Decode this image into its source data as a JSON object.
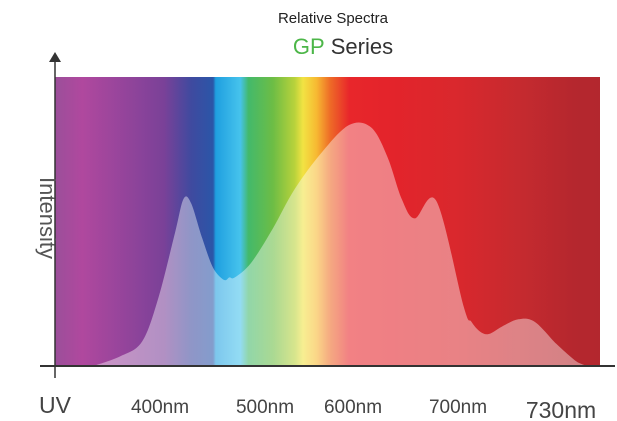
{
  "chart_data": {
    "type": "area",
    "title": "Relative Spectra",
    "subtitle_highlight": "GP",
    "subtitle_rest": "Series",
    "ylabel": "Intensity",
    "x_ticks": [
      {
        "label": "UV",
        "value": 300
      },
      {
        "label": "400nm",
        "value": 400
      },
      {
        "label": "500nm",
        "value": 500
      },
      {
        "label": "600nm",
        "value": 600
      },
      {
        "label": "700nm",
        "value": 700
      },
      {
        "label": "730nm",
        "value": 730
      }
    ],
    "xlim": [
      300,
      800
    ],
    "ylim": [
      0,
      1
    ],
    "grid": false,
    "series": [
      {
        "x": [
          335,
          360,
          380,
          395,
          410,
          418,
          425,
          435,
          445,
          455,
          460,
          465,
          480,
          500,
          520,
          545,
          570,
          590,
          605,
          618,
          630,
          650,
          675,
          682,
          690,
          698,
          710,
          725,
          740,
          760,
          775,
          782,
          790,
          800
        ],
        "values": [
          0.0,
          0.04,
          0.1,
          0.28,
          0.54,
          0.68,
          0.66,
          0.52,
          0.4,
          0.35,
          0.36,
          0.36,
          0.42,
          0.56,
          0.72,
          0.87,
          0.98,
          0.97,
          0.85,
          0.68,
          0.6,
          0.67,
          0.24,
          0.18,
          0.14,
          0.13,
          0.16,
          0.19,
          0.18,
          0.09,
          0.03,
          0.01,
          0.0,
          0.0
        ]
      }
    ]
  },
  "colors": {
    "title_accent": "#4cb648",
    "axis": "#333333",
    "curve_fill": "rgba(255,255,255,0.42)"
  },
  "spectrum_colors": [
    "#9b4f9a",
    "#b0489e",
    "#7a4198",
    "#3f4a9f",
    "#2b56a8",
    "#1f9fe0",
    "#46c3ec",
    "#43b96b",
    "#6dbd45",
    "#b9d23b",
    "#f2e343",
    "#f7b932",
    "#ee6b27",
    "#e8262b",
    "#e3242b",
    "#d9282d",
    "#c42a2f",
    "#b5272e",
    "#b3272e"
  ],
  "spectrum_stops": [
    0,
    0.05,
    0.2,
    0.25,
    0.29,
    0.295,
    0.34,
    0.355,
    0.4,
    0.44,
    0.455,
    0.48,
    0.505,
    0.54,
    0.62,
    0.74,
    0.86,
    0.95,
    1
  ]
}
